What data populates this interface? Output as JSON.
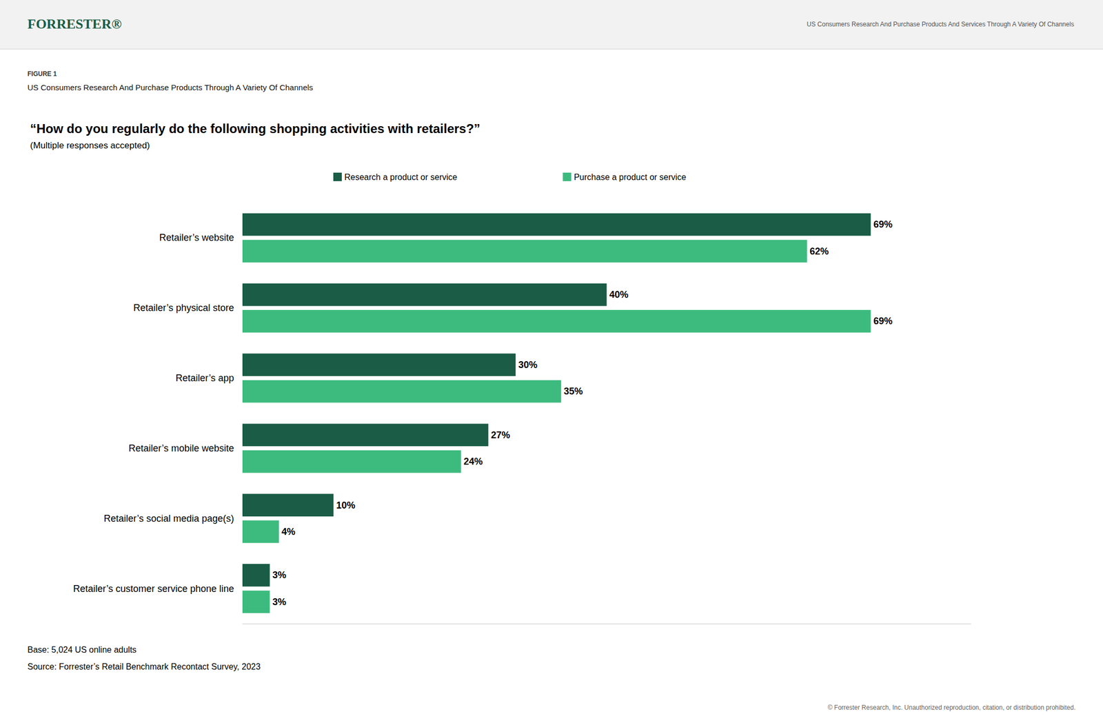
{
  "chart_data": {
    "type": "bar",
    "orientation": "horizontal",
    "title": "“How do you regularly do the following shopping activities with retailers?”",
    "subtitle": "(Multiple responses accepted)",
    "annotations": [
      "FORRESTER®",
      "US Consumers Research And Purchase Products And Services Through A Variety Of Channels",
      "FIGURE 1",
      "US Consumers Research And Purchase Products Through A Variety Of Channels",
      "Base: 5,024 US online adults",
      "Source: Forrester’s Retail Benchmark Recontact Survey, 2023",
      "© Forrester Research, Inc. Unauthorized reproduction, citation, or distribution prohibited."
    ],
    "categories": [
      "Retailer’s website",
      "Retailer’s physical store",
      "Retailer’s app",
      "Retailer’s mobile website",
      "Retailer’s social media page(s)",
      "Retailer’s customer service phone line"
    ],
    "series": [
      {
        "name": "Research a product or service",
        "color": "#1a5c45",
        "values": [
          69,
          40,
          30,
          27,
          10,
          3
        ],
        "value_labels": [
          "69%",
          "40%",
          "30%",
          "27%",
          "10%",
          "3%"
        ]
      },
      {
        "name": "Purchase a product or service",
        "color": "#3dbb7e",
        "values": [
          62,
          69,
          35,
          24,
          4,
          3
        ],
        "value_labels": [
          "62%",
          "69%",
          "35%",
          "24%",
          "4%",
          "3%"
        ]
      }
    ],
    "xlim": [
      0,
      80
    ],
    "data_labels": true,
    "tick_labels": "y",
    "grid": false,
    "legend": "top"
  }
}
